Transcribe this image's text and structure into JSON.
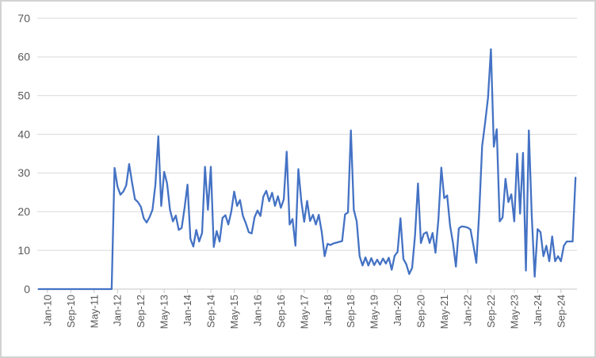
{
  "chart_data": {
    "type": "line",
    "title": "",
    "xlabel": "",
    "ylabel": "",
    "start_month": "Oct-2009",
    "frequency": "monthly",
    "ylim": [
      0,
      70
    ],
    "y_ticks": [
      0,
      10,
      20,
      30,
      40,
      50,
      60,
      70
    ],
    "grid": "horizontal",
    "legend_position": "none",
    "x_tick_step_months": 8,
    "x_first_tick_index": 3,
    "x_tick_labels": [
      "Jan-10",
      "Sep-10",
      "May-11",
      "Jan-12",
      "Sep-12",
      "May-13",
      "Jan-14",
      "Sep-14",
      "May-15",
      "Jan-16",
      "Sep-16",
      "May-17",
      "Jan-18",
      "Sep-18",
      "May-19",
      "Jan-20",
      "Sep-20",
      "May-21",
      "Jan-22",
      "Sep-22",
      "May-23",
      "Jan-24",
      "Sep-24"
    ],
    "series": [
      {
        "name": "series-1",
        "color": "#4472C4",
        "values": [
          0,
          0,
          0,
          0,
          0,
          0,
          0,
          0,
          0,
          0,
          0,
          0,
          0,
          0,
          0,
          0,
          0,
          0,
          0,
          0,
          0,
          0,
          0,
          0,
          0,
          0,
          31.3,
          26.5,
          24.4,
          25.2,
          26.8,
          32.3,
          27.5,
          23.2,
          22.5,
          21.3,
          18.3,
          17.2,
          18.6,
          20.5,
          27,
          39.5,
          21.5,
          30.3,
          27.3,
          20.5,
          17.5,
          19,
          15.3,
          15.8,
          21,
          27,
          13,
          11,
          15.3,
          12.3,
          14.5,
          31.6,
          20.5,
          31.6,
          10.9,
          15,
          12.3,
          18.4,
          19.1,
          16.7,
          20,
          25.2,
          21.5,
          23,
          18.9,
          17,
          14.7,
          14.4,
          18.6,
          20.3,
          18.9,
          23.9,
          25.4,
          22.7,
          24.9,
          21.5,
          24,
          21,
          23.2,
          35.5,
          16.7,
          18.1,
          11.2,
          31,
          22.8,
          17.4,
          22.8,
          17.6,
          19.2,
          16.7,
          19.2,
          14.8,
          8.5,
          11.7,
          11.4,
          11.8,
          12,
          12.2,
          12.4,
          19.3,
          19.8,
          41,
          20.5,
          17.5,
          8.5,
          6.1,
          8.2,
          6.1,
          8,
          6.2,
          7.6,
          6.3,
          7.9,
          6.6,
          8.1,
          5,
          8.6,
          9.6,
          18.3,
          7.8,
          6.4,
          3.9,
          5.5,
          14,
          27.3,
          11.9,
          14.3,
          14.7,
          11.9,
          14.5,
          9.4,
          18,
          31.4,
          23.5,
          24.2,
          16.4,
          11.9,
          5.8,
          15.7,
          16.2,
          16.1,
          15.9,
          15.4,
          11.3,
          6.8,
          20,
          37,
          42.9,
          49.4,
          62,
          36.8,
          41.3,
          17.5,
          18.5,
          28.5,
          22.5,
          24.5,
          17.5,
          35,
          19.5,
          35.2,
          4.8,
          41,
          19,
          3.2,
          15.5,
          14.7,
          8.5,
          11.2,
          7.2,
          13.6,
          7.2,
          8.5,
          7.2,
          11.2,
          12.3,
          12.3,
          12.3,
          28.8
        ]
      }
    ],
    "colors": {
      "line": "#4472C4",
      "gridline": "#D9D9D9",
      "axis_line": "#C6C6C6",
      "tick_mark": "#C6C6C6",
      "axis_label": "#595959",
      "background": "#FFFFFF",
      "frame_border": "#D2D2D2"
    }
  }
}
